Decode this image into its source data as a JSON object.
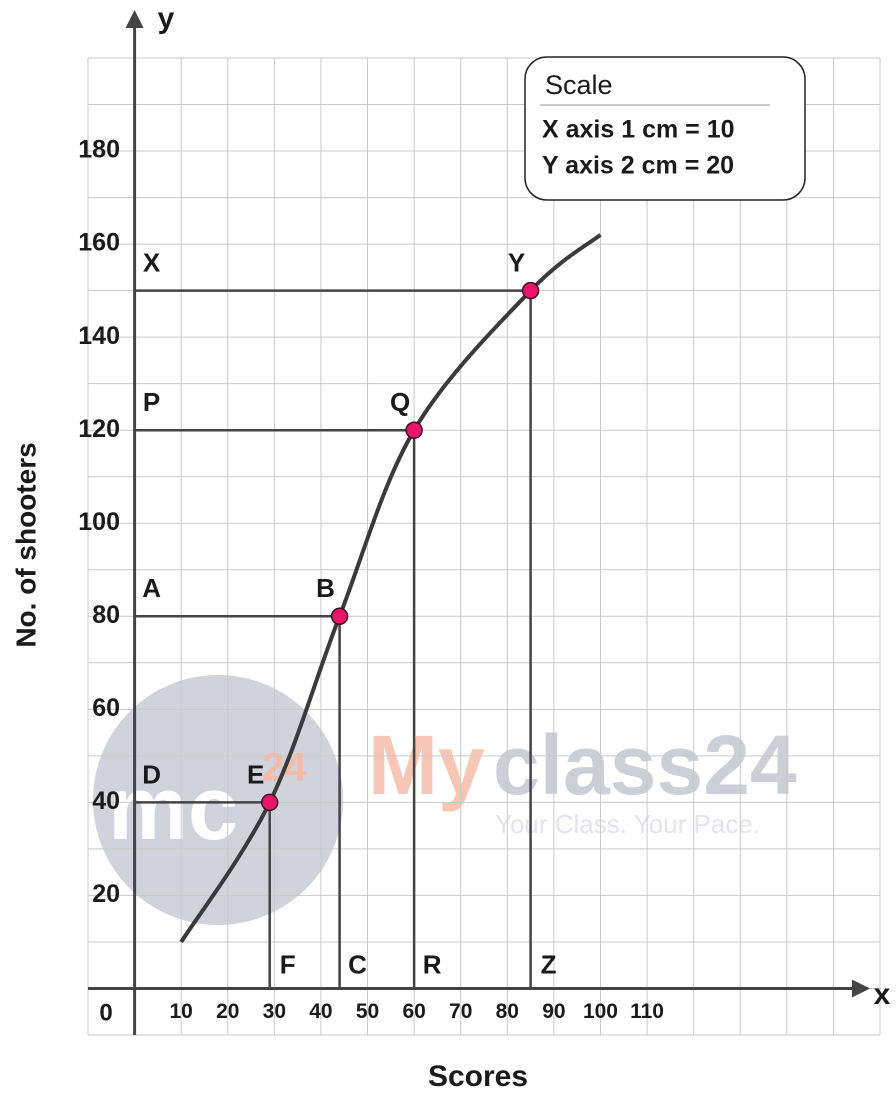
{
  "chart_data": {
    "type": "line",
    "xlabel": "Scores",
    "ylabel": "No. of shooters",
    "x_axis_name": "x",
    "y_axis_name": "y",
    "origin_label": "0",
    "xlim": [
      -10,
      160
    ],
    "ylim": [
      -10,
      200
    ],
    "xticks": [
      10,
      20,
      30,
      40,
      50,
      60,
      70,
      80,
      90,
      100,
      110
    ],
    "yticks": [
      20,
      40,
      60,
      80,
      100,
      120,
      140,
      160,
      180
    ],
    "grid": true,
    "curve": {
      "color": "#3a3a3a",
      "x": [
        10,
        29,
        44,
        60,
        85,
        100
      ],
      "values": [
        10,
        40,
        80,
        120,
        150,
        162
      ]
    },
    "points": [
      {
        "label": "E",
        "y_label": "D",
        "x_label": "F",
        "x": 29,
        "y": 40
      },
      {
        "label": "B",
        "y_label": "A",
        "x_label": "C",
        "x": 44,
        "y": 80
      },
      {
        "label": "Q",
        "y_label": "P",
        "x_label": "R",
        "x": 60,
        "y": 120
      },
      {
        "label": "Y",
        "y_label": "X",
        "x_label": "Z",
        "x": 85,
        "y": 150
      }
    ],
    "point_color": "#e8156b",
    "scale_box": {
      "title": "Scale",
      "lines": [
        "X axis 1 cm = 10",
        "Y axis 2 cm = 20"
      ]
    },
    "watermark": {
      "logo": "mc",
      "logo_num": "24",
      "brand_a": "My",
      "brand_b": "class24",
      "tagline": "Your Class. Your Pace."
    }
  }
}
